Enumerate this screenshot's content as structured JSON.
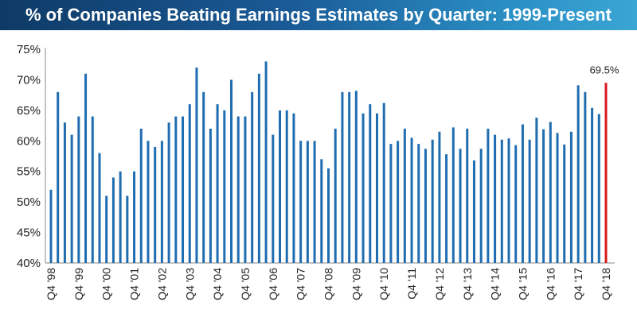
{
  "title": "% of Companies Beating Earnings Estimates by Quarter: 1999-Present",
  "colors": {
    "bar": "#1f6db0",
    "highlight": "#d7191c",
    "title_start": "#0e3a66",
    "title_end": "#3aa6d4"
  },
  "chart_data": {
    "type": "bar",
    "title": "% of Companies Beating Earnings Estimates by Quarter: 1999-Present",
    "xlabel": "",
    "ylabel": "",
    "ylim": [
      40,
      75
    ],
    "yticks": [
      "40%",
      "45%",
      "50%",
      "55%",
      "60%",
      "65%",
      "70%",
      "75%"
    ],
    "grid": false,
    "categories": [
      "Q4 '98",
      "Q1 '99",
      "Q2 '99",
      "Q3 '99",
      "Q4 '99",
      "Q1 '00",
      "Q2 '00",
      "Q3 '00",
      "Q4 '00",
      "Q1 '01",
      "Q2 '01",
      "Q3 '01",
      "Q4 '01",
      "Q1 '02",
      "Q2 '02",
      "Q3 '02",
      "Q4 '02",
      "Q1 '03",
      "Q2 '03",
      "Q3 '03",
      "Q4 '03",
      "Q1 '04",
      "Q2 '04",
      "Q3 '04",
      "Q4 '04",
      "Q1 '05",
      "Q2 '05",
      "Q3 '05",
      "Q4 '05",
      "Q1 '06",
      "Q2 '06",
      "Q3 '06",
      "Q4 '06",
      "Q1 '07",
      "Q2 '07",
      "Q3 '07",
      "Q4 '07",
      "Q1 '08",
      "Q2 '08",
      "Q3 '08",
      "Q4 '08",
      "Q1 '09",
      "Q2 '09",
      "Q3 '09",
      "Q4 '09",
      "Q1 '10",
      "Q2 '10",
      "Q3 '10",
      "Q4 '10",
      "Q1 '11",
      "Q2 '11",
      "Q3 '11",
      "Q4 '11",
      "Q1 '12",
      "Q2 '12",
      "Q3 '12",
      "Q4 '12",
      "Q1 '13",
      "Q2 '13",
      "Q3 '13",
      "Q4 '13",
      "Q1 '14",
      "Q2 '14",
      "Q3 '14",
      "Q4 '14",
      "Q1 '15",
      "Q2 '15",
      "Q3 '15",
      "Q4 '15",
      "Q1 '16",
      "Q2 '16",
      "Q3 '16",
      "Q4 '16",
      "Q1 '17",
      "Q2 '17",
      "Q3 '17",
      "Q4 '17",
      "Q1 '18",
      "Q2 '18",
      "Q3 '18",
      "Q4 '18"
    ],
    "x_tick_labels": [
      "Q4 '98",
      "Q4 '99",
      "Q4 '00",
      "Q4 '01",
      "Q4 '02",
      "Q4 '03",
      "Q4 '04",
      "Q4 '05",
      "Q4 '06",
      "Q4 '07",
      "Q4 '08",
      "Q4 '09",
      "Q4 '10",
      "Q4 '11",
      "Q4 '12",
      "Q4 '13",
      "Q4 '14",
      "Q4 '15",
      "Q4 '16",
      "Q4 '17",
      "Q4 '18"
    ],
    "values": [
      52,
      68,
      63,
      61,
      64,
      71,
      64,
      58,
      51,
      54,
      55,
      51,
      55,
      62,
      60,
      59,
      60,
      63,
      64,
      64,
      66,
      72,
      68,
      62,
      66,
      65,
      70,
      64,
      64,
      68,
      71,
      73,
      61,
      65,
      65,
      64.5,
      60,
      60,
      60,
      57,
      55.5,
      62,
      68,
      68,
      68.2,
      64.5,
      66,
      64.5,
      66.2,
      59.5,
      60,
      62,
      60.5,
      59.5,
      58.7,
      60.2,
      61.5,
      57.8,
      62.2,
      58.7,
      62,
      56.8,
      58.7,
      62,
      61,
      60.2,
      60.4,
      59.3,
      62.7,
      60.2,
      63.8,
      61.9,
      63.1,
      61.3,
      59.4,
      61.5,
      69.1,
      68,
      65.4,
      64.4,
      69.5
    ],
    "highlight_index": 80,
    "data_labels": [
      {
        "index": 80,
        "text": "69.5%"
      }
    ]
  }
}
